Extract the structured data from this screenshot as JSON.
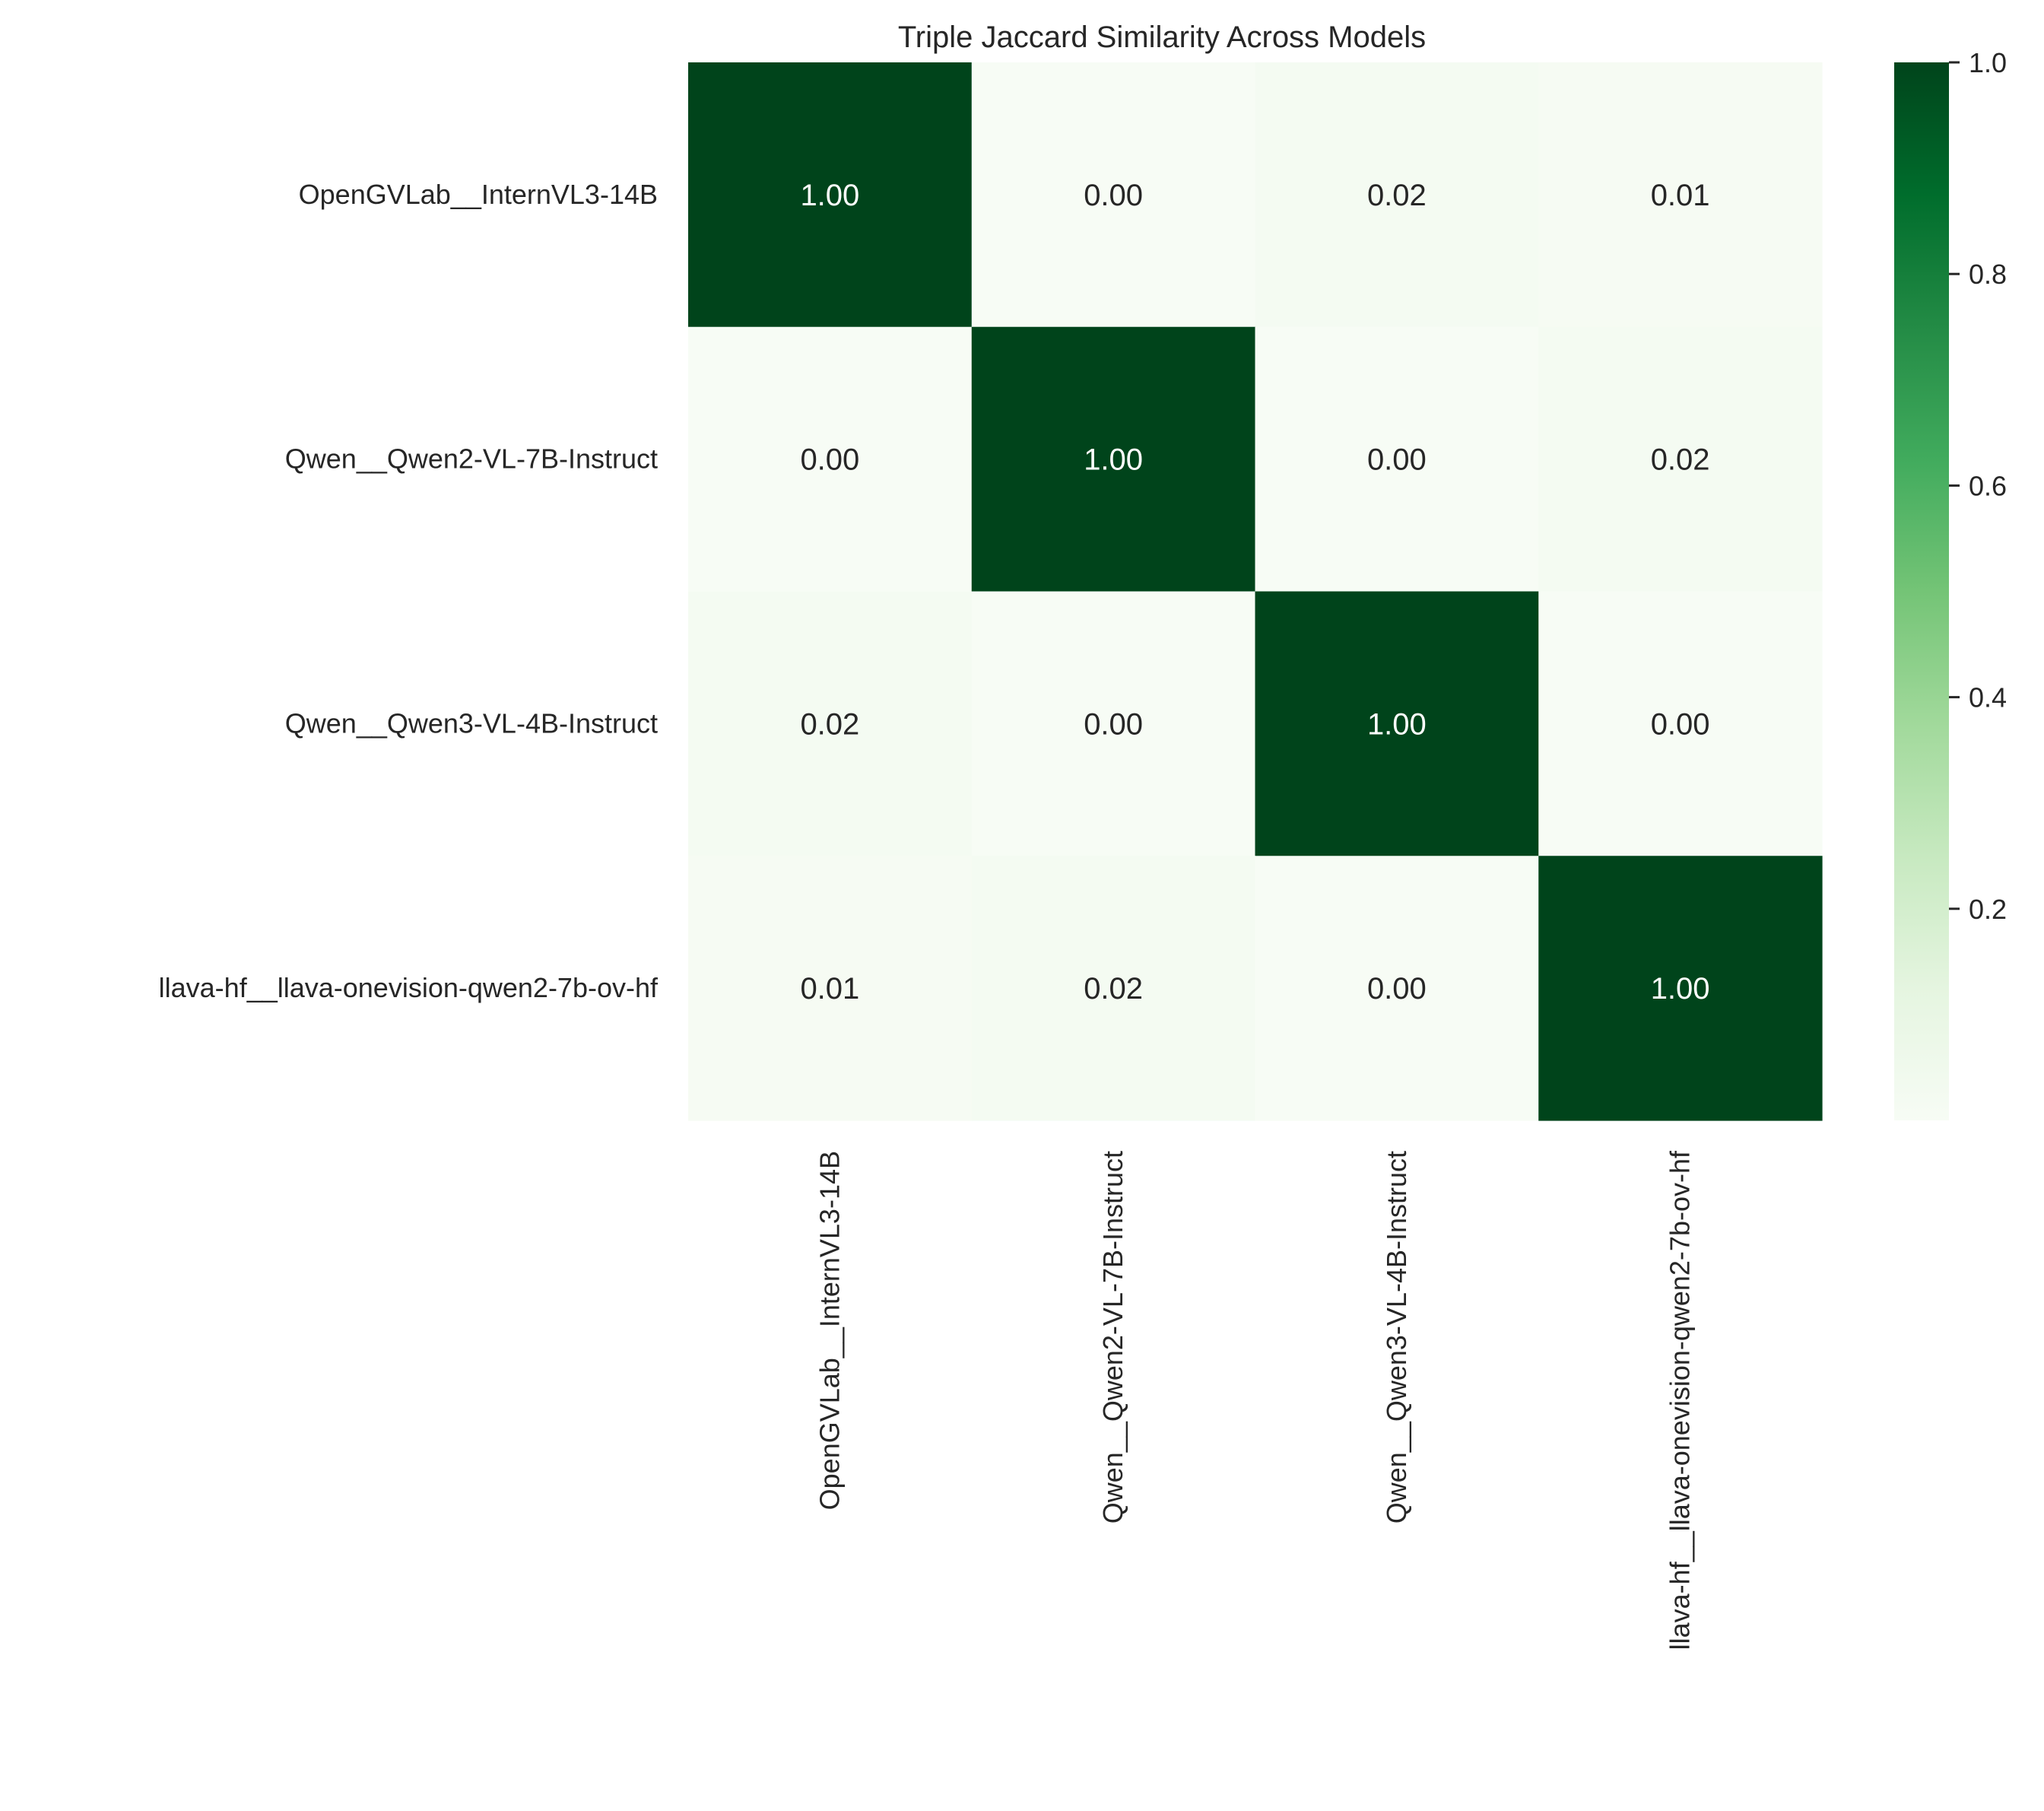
{
  "chart_data": {
    "type": "heatmap",
    "title": "Triple Jaccard Similarity Across Models",
    "row_labels": [
      "OpenGVLab__InternVL3-14B",
      "Qwen__Qwen2-VL-7B-Instruct",
      "Qwen__Qwen3-VL-4B-Instruct",
      "llava-hf__llava-onevision-qwen2-7b-ov-hf"
    ],
    "col_labels": [
      "OpenGVLab__InternVL3-14B",
      "Qwen__Qwen2-VL-7B-Instruct",
      "Qwen__Qwen3-VL-4B-Instruct",
      "llava-hf__llava-onevision-qwen2-7b-ov-hf"
    ],
    "values": [
      [
        1.0,
        0.0,
        0.02,
        0.01
      ],
      [
        0.0,
        1.0,
        0.0,
        0.02
      ],
      [
        0.02,
        0.0,
        1.0,
        0.0
      ],
      [
        0.01,
        0.02,
        0.0,
        1.0
      ]
    ],
    "annotation_format": "0.00",
    "colormap": "Greens",
    "colormap_stops": [
      "#f7fcf5",
      "#e5f5e0",
      "#c7e9c0",
      "#a1d99b",
      "#74c476",
      "#41ab5d",
      "#238b45",
      "#006d2c",
      "#00441b"
    ],
    "annotation_text_colors": {
      "light": "#ffffff",
      "dark": "#262626"
    },
    "colorbar": {
      "vmin": 0.0,
      "vmax": 1.0,
      "ticks": [
        0.2,
        0.4,
        0.6,
        0.8,
        1.0
      ],
      "tick_labels": [
        "0.2",
        "0.4",
        "0.6",
        "0.8",
        "1.0"
      ]
    },
    "grid": false
  }
}
